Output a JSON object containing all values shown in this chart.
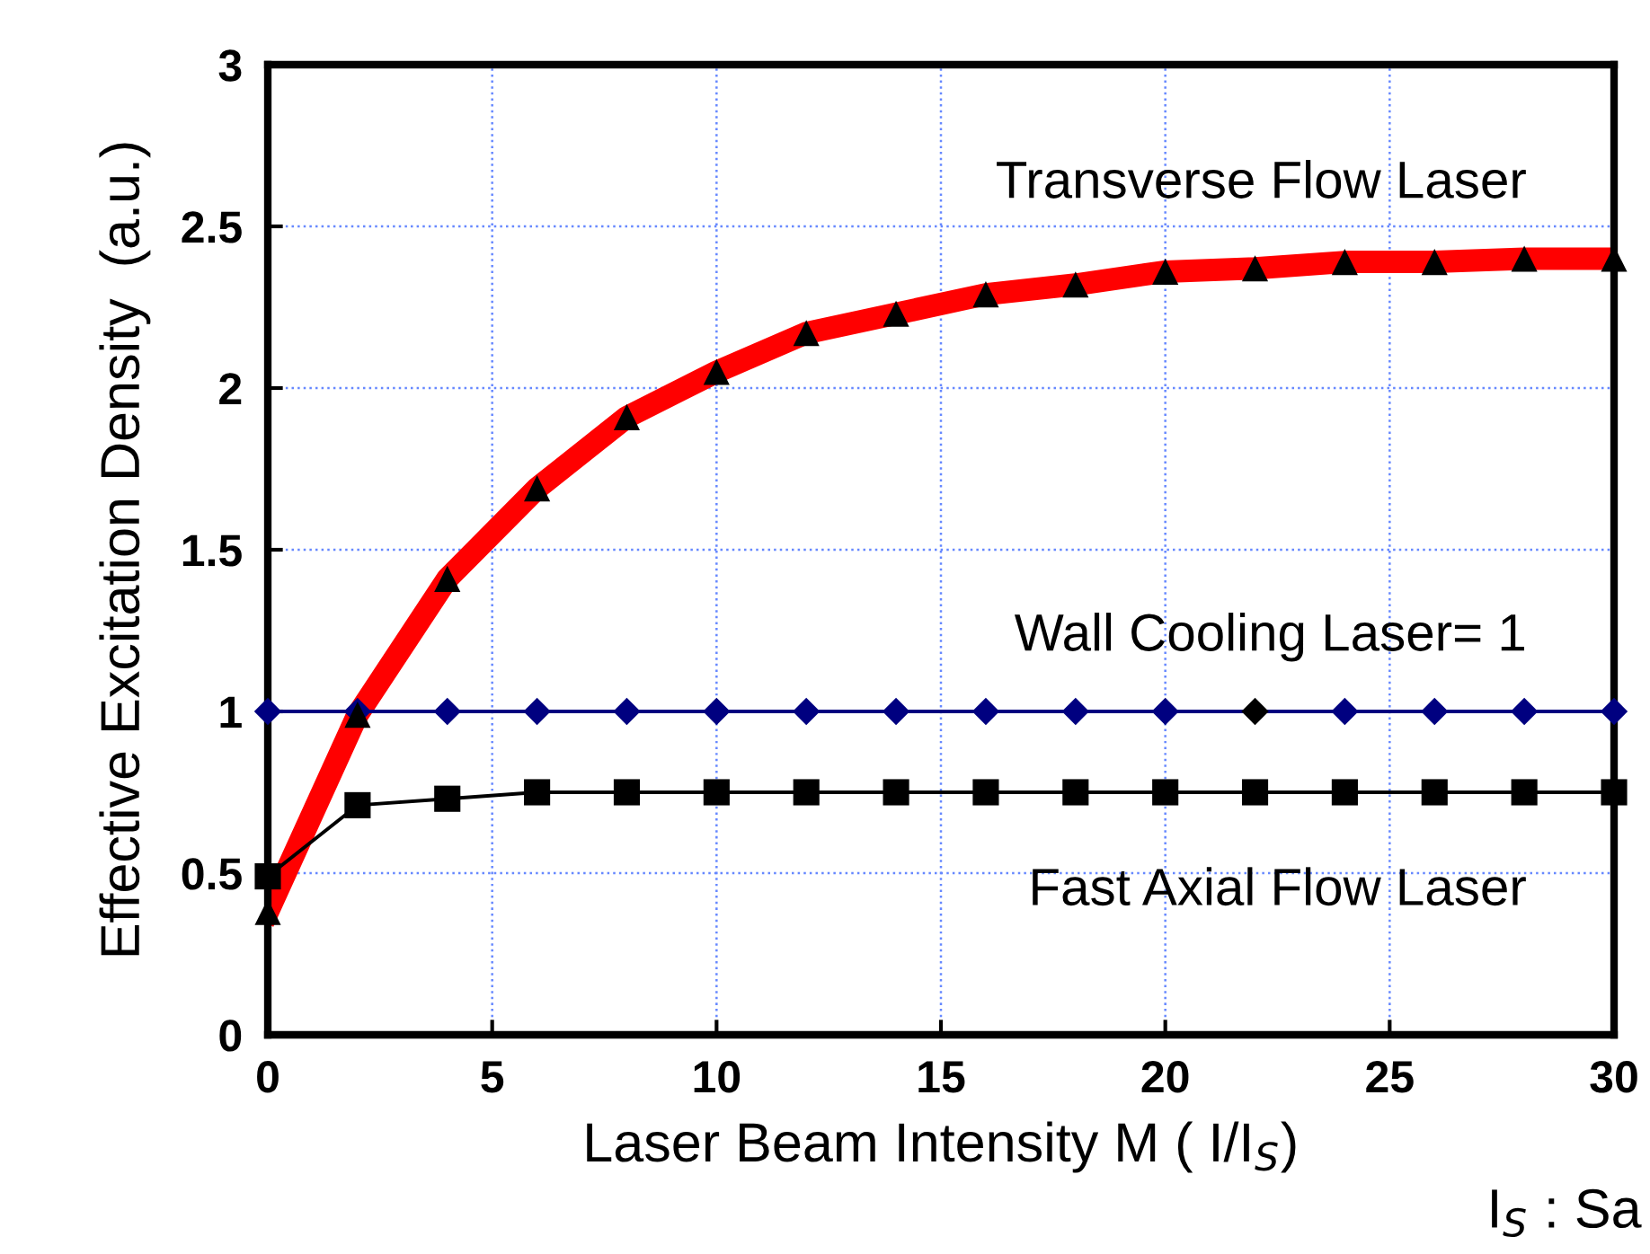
{
  "chart_data": {
    "type": "line",
    "xlabel": "Laser Beam Intensity M ( I/I$_{S}$)",
    "ylabel": "Effective Excitation Density  (a.u.)",
    "annotations": [
      "I$_{S}$ : Sa"
    ],
    "x": [
      0,
      2,
      4,
      6,
      8,
      10,
      12,
      14,
      16,
      18,
      20,
      22,
      24,
      26,
      28,
      30
    ],
    "series": [
      {
        "name": "Transverse Flow Laser",
        "color": "#ff0000",
        "marker": "triangle",
        "colors": [
          "#000000",
          "#000000",
          "#000000",
          "#000000",
          "#000000",
          "#000000",
          "#000000",
          "#000000",
          "#000000",
          "#000000",
          "#000000",
          "#000000",
          "#000000",
          "#000000",
          "#000000",
          "#000000"
        ],
        "values": [
          0.38,
          0.99,
          1.41,
          1.69,
          1.91,
          2.05,
          2.17,
          2.23,
          2.29,
          2.32,
          2.36,
          2.37,
          2.39,
          2.39,
          2.4,
          2.4
        ]
      },
      {
        "name": "Wall Cooling Laser= 1",
        "color": "#000080",
        "marker": "diamond",
        "colors": [
          "#000080",
          "#000080",
          "#000080",
          "#000080",
          "#000080",
          "#000080",
          "#000080",
          "#000080",
          "#000080",
          "#000080",
          "#000080",
          "#000000",
          "#000080",
          "#000080",
          "#000080",
          "#000080"
        ],
        "values": [
          1,
          1,
          1,
          1,
          1,
          1,
          1,
          1,
          1,
          1,
          1,
          1,
          1,
          1,
          1,
          1
        ]
      },
      {
        "name": "Fast Axial Flow Laser",
        "color": "#000000",
        "marker": "square",
        "colors": [
          "#000000",
          "#000000",
          "#000000",
          "#000000",
          "#000000",
          "#000000",
          "#000000",
          "#000000",
          "#000000",
          "#000000",
          "#000000",
          "#000000",
          "#000000",
          "#000000",
          "#000000",
          "#000000"
        ],
        "values": [
          0.49,
          0.71,
          0.73,
          0.75,
          0.75,
          0.75,
          0.75,
          0.75,
          0.75,
          0.75,
          0.75,
          0.75,
          0.75,
          0.75,
          0.75,
          0.75
        ]
      }
    ],
    "xlim": [
      0,
      30
    ],
    "xticks": [
      0,
      5,
      10,
      15,
      20,
      25,
      30
    ],
    "ylim": [
      0,
      3
    ],
    "yticks": [
      0,
      0.5,
      1,
      1.5,
      2,
      2.5,
      3
    ],
    "grid": true,
    "legend": false,
    "line_style": "solid"
  }
}
